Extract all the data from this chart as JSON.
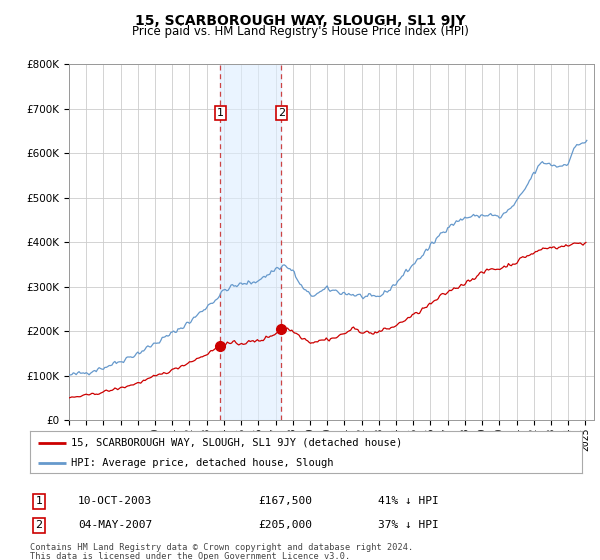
{
  "title": "15, SCARBOROUGH WAY, SLOUGH, SL1 9JY",
  "subtitle": "Price paid vs. HM Land Registry's House Price Index (HPI)",
  "legend_property": "15, SCARBOROUGH WAY, SLOUGH, SL1 9JY (detached house)",
  "legend_hpi": "HPI: Average price, detached house, Slough",
  "footer1": "Contains HM Land Registry data © Crown copyright and database right 2024.",
  "footer2": "This data is licensed under the Open Government Licence v3.0.",
  "sales": [
    {
      "label": "1",
      "date": "10-OCT-2003",
      "price": 167500,
      "hpi_pct": "41% ↓ HPI",
      "year": 2003.78
    },
    {
      "label": "2",
      "date": "04-MAY-2007",
      "price": 205000,
      "hpi_pct": "37% ↓ HPI",
      "year": 2007.34
    }
  ],
  "ylim": [
    0,
    800000
  ],
  "yticks": [
    0,
    100000,
    200000,
    300000,
    400000,
    500000,
    600000,
    700000,
    800000
  ],
  "hpi_color": "#6699cc",
  "property_color": "#cc0000",
  "highlight_color": "#ddeeff",
  "highlight_alpha": 0.6,
  "grid_color": "#cccccc",
  "background_color": "#ffffff",
  "sale1_x": 2003.78,
  "sale1_y": 167500,
  "sale2_x": 2007.34,
  "sale2_y": 205000,
  "xmin": 1995,
  "xmax": 2025.5
}
